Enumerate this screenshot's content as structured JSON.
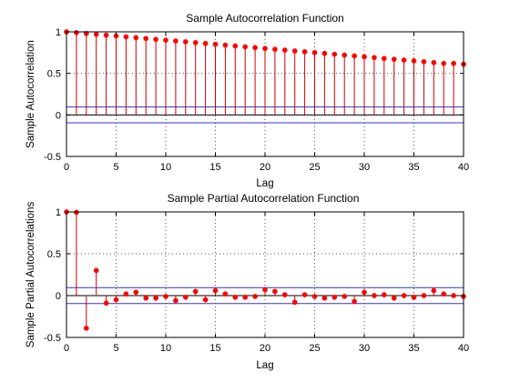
{
  "colors": {
    "stem": "#cc0000",
    "marker": "#ff0000",
    "bound": "#3333cc",
    "axis": "#000000",
    "grid": "#555555"
  },
  "chart_data": [
    {
      "type": "stem",
      "title": "Sample Autocorrelation Function",
      "xlabel": "Lag",
      "ylabel": "Sample Autocorrelation",
      "xlim": [
        0,
        40
      ],
      "ylim": [
        -0.5,
        1
      ],
      "xticks": [
        "0",
        "5",
        "10",
        "15",
        "20",
        "25",
        "30",
        "35",
        "40"
      ],
      "yticks": [
        "-0.5",
        "0",
        "0.5",
        "1"
      ],
      "grid": true,
      "bounds": [
        0.095,
        -0.095
      ],
      "x": [
        0,
        1,
        2,
        3,
        4,
        5,
        6,
        7,
        8,
        9,
        10,
        11,
        12,
        13,
        14,
        15,
        16,
        17,
        18,
        19,
        20,
        21,
        22,
        23,
        24,
        25,
        26,
        27,
        28,
        29,
        30,
        31,
        32,
        33,
        34,
        35,
        36,
        37,
        38,
        39,
        40
      ],
      "values": [
        1.0,
        0.99,
        0.98,
        0.97,
        0.96,
        0.95,
        0.94,
        0.93,
        0.92,
        0.91,
        0.9,
        0.89,
        0.88,
        0.87,
        0.86,
        0.85,
        0.84,
        0.83,
        0.82,
        0.81,
        0.8,
        0.79,
        0.78,
        0.77,
        0.76,
        0.75,
        0.74,
        0.73,
        0.72,
        0.71,
        0.7,
        0.69,
        0.68,
        0.67,
        0.66,
        0.65,
        0.64,
        0.63,
        0.62,
        0.62,
        0.61
      ]
    },
    {
      "type": "stem",
      "title": "Sample Partial Autocorrelation Function",
      "xlabel": "Lag",
      "ylabel": "Sample Partial Autocorrelations",
      "xlim": [
        0,
        40
      ],
      "ylim": [
        -0.5,
        1
      ],
      "xticks": [
        "0",
        "5",
        "10",
        "15",
        "20",
        "25",
        "30",
        "35",
        "40"
      ],
      "yticks": [
        "-0.5",
        "0",
        "0.5",
        "1"
      ],
      "grid": true,
      "bounds": [
        0.095,
        -0.095
      ],
      "x": [
        0,
        1,
        2,
        3,
        4,
        5,
        6,
        7,
        8,
        9,
        10,
        11,
        12,
        13,
        14,
        15,
        16,
        17,
        18,
        19,
        20,
        21,
        22,
        23,
        24,
        25,
        26,
        27,
        28,
        29,
        30,
        31,
        32,
        33,
        34,
        35,
        36,
        37,
        38,
        39,
        40
      ],
      "values": [
        1.0,
        0.995,
        -0.39,
        0.3,
        -0.09,
        -0.05,
        0.02,
        0.04,
        -0.03,
        -0.03,
        -0.01,
        -0.06,
        -0.02,
        0.05,
        -0.05,
        0.06,
        0.02,
        -0.02,
        -0.02,
        -0.01,
        0.07,
        0.05,
        0.01,
        -0.08,
        0.01,
        -0.01,
        -0.03,
        -0.02,
        -0.01,
        -0.07,
        0.04,
        0.0,
        0.01,
        -0.03,
        0.0,
        -0.02,
        0.0,
        0.06,
        0.02,
        0.0,
        -0.01
      ]
    }
  ]
}
